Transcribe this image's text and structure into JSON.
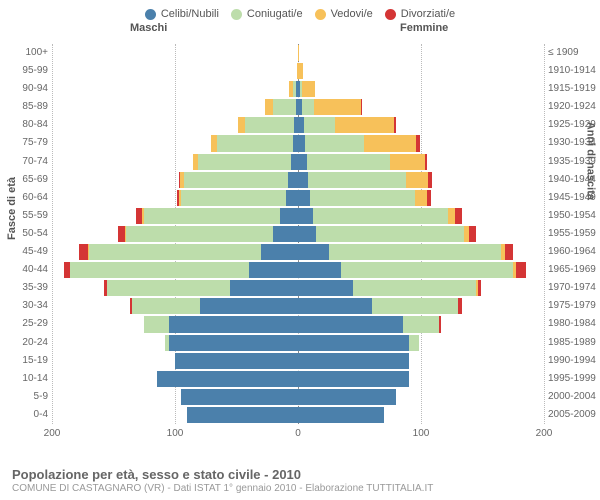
{
  "legend": [
    {
      "label": "Celibi/Nubili",
      "color": "#4b80ab"
    },
    {
      "label": "Coniugati/e",
      "color": "#bdddab"
    },
    {
      "label": "Vedovi/e",
      "color": "#f7c15a"
    },
    {
      "label": "Divorziati/e",
      "color": "#d43535"
    }
  ],
  "header": {
    "male": "Maschi",
    "female": "Femmine"
  },
  "axis_titles": {
    "left": "Fasce di età",
    "right": "Anni di nascita"
  },
  "footer": {
    "title": "Popolazione per età, sesso e stato civile - 2010",
    "subtitle": "COMUNE DI CASTAGNARO (VR) - Dati ISTAT 1° gennaio 2010 - Elaborazione TUTTITALIA.IT"
  },
  "chart": {
    "type": "population-pyramid",
    "background_color": "#ffffff",
    "grid_color": "#bbbbbb",
    "center_line_color": "#888888",
    "font_family": "Arial",
    "label_fontsize": 10,
    "title_fontsize": 13,
    "x_max": 200,
    "x_ticks": [
      200,
      100,
      0,
      100,
      200
    ],
    "bar_gap": 2,
    "colors": {
      "celibi": "#4b80ab",
      "coniugati": "#bdddab",
      "vedovi": "#f7c15a",
      "divorziati": "#d43535"
    },
    "rows": [
      {
        "age": "100+",
        "year": "≤ 1909",
        "m": [
          0,
          0,
          0,
          0
        ],
        "f": [
          0,
          0,
          1,
          0
        ]
      },
      {
        "age": "95-99",
        "year": "1910-1914",
        "m": [
          0,
          0,
          1,
          0
        ],
        "f": [
          0,
          0,
          4,
          0
        ]
      },
      {
        "age": "90-94",
        "year": "1915-1919",
        "m": [
          2,
          2,
          3,
          0
        ],
        "f": [
          2,
          1,
          11,
          0
        ]
      },
      {
        "age": "85-89",
        "year": "1920-1924",
        "m": [
          2,
          18,
          7,
          0
        ],
        "f": [
          3,
          10,
          38,
          1
        ]
      },
      {
        "age": "80-84",
        "year": "1925-1929",
        "m": [
          3,
          40,
          6,
          0
        ],
        "f": [
          5,
          25,
          48,
          2
        ]
      },
      {
        "age": "75-79",
        "year": "1930-1934",
        "m": [
          4,
          62,
          5,
          0
        ],
        "f": [
          6,
          48,
          42,
          3
        ]
      },
      {
        "age": "70-74",
        "year": "1935-1939",
        "m": [
          6,
          75,
          4,
          0
        ],
        "f": [
          7,
          68,
          28,
          2
        ]
      },
      {
        "age": "65-69",
        "year": "1940-1944",
        "m": [
          8,
          85,
          3,
          1
        ],
        "f": [
          8,
          80,
          18,
          3
        ]
      },
      {
        "age": "60-64",
        "year": "1945-1949",
        "m": [
          10,
          85,
          2,
          1
        ],
        "f": [
          10,
          85,
          10,
          3
        ]
      },
      {
        "age": "55-59",
        "year": "1950-1954",
        "m": [
          15,
          110,
          2,
          5
        ],
        "f": [
          12,
          110,
          6,
          5
        ]
      },
      {
        "age": "50-54",
        "year": "1955-1959",
        "m": [
          20,
          120,
          1,
          5
        ],
        "f": [
          15,
          120,
          4,
          6
        ]
      },
      {
        "age": "45-49",
        "year": "1960-1964",
        "m": [
          30,
          140,
          1,
          7
        ],
        "f": [
          25,
          140,
          3,
          7
        ]
      },
      {
        "age": "40-44",
        "year": "1965-1969",
        "m": [
          40,
          145,
          0,
          5
        ],
        "f": [
          35,
          140,
          2,
          8
        ]
      },
      {
        "age": "35-39",
        "year": "1970-1974",
        "m": [
          55,
          100,
          0,
          3
        ],
        "f": [
          45,
          100,
          1,
          3
        ]
      },
      {
        "age": "30-34",
        "year": "1975-1979",
        "m": [
          80,
          55,
          0,
          2
        ],
        "f": [
          60,
          70,
          0,
          3
        ]
      },
      {
        "age": "25-29",
        "year": "1980-1984",
        "m": [
          105,
          20,
          0,
          0
        ],
        "f": [
          85,
          30,
          0,
          1
        ]
      },
      {
        "age": "20-24",
        "year": "1985-1989",
        "m": [
          105,
          3,
          0,
          0
        ],
        "f": [
          90,
          8,
          0,
          0
        ]
      },
      {
        "age": "15-19",
        "year": "1990-1994",
        "m": [
          100,
          0,
          0,
          0
        ],
        "f": [
          90,
          0,
          0,
          0
        ]
      },
      {
        "age": "10-14",
        "year": "1995-1999",
        "m": [
          115,
          0,
          0,
          0
        ],
        "f": [
          90,
          0,
          0,
          0
        ]
      },
      {
        "age": "5-9",
        "year": "2000-2004",
        "m": [
          95,
          0,
          0,
          0
        ],
        "f": [
          80,
          0,
          0,
          0
        ]
      },
      {
        "age": "0-4",
        "year": "2005-2009",
        "m": [
          90,
          0,
          0,
          0
        ],
        "f": [
          70,
          0,
          0,
          0
        ]
      }
    ]
  }
}
